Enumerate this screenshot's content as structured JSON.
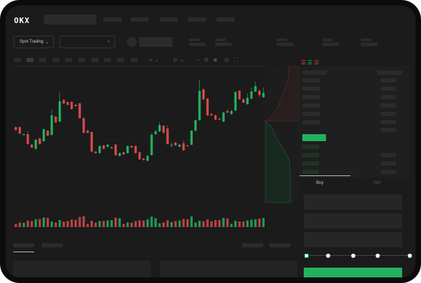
{
  "header": {
    "logo": "OKX"
  },
  "toolbar": {
    "market_select": "Spot Trading",
    "pair_select": ""
  },
  "trade": {
    "tabs": [
      "Buy",
      "Sell"
    ],
    "active_tab": "Buy",
    "slider_value": 0
  },
  "colors": {
    "up": "#22b15f",
    "down": "#d84a4a",
    "background": "#1b1b1b",
    "placeholder": "#2b2b2b"
  },
  "chart_data": {
    "type": "candlestick",
    "candles": [
      [
        118,
        114,
        119,
        113
      ],
      [
        118,
        109,
        119,
        108
      ],
      [
        107,
        108,
        109,
        106
      ],
      [
        108,
        94,
        113,
        93
      ],
      [
        93,
        89,
        94,
        88
      ],
      [
        87,
        100,
        101,
        86
      ],
      [
        102,
        94,
        103,
        93
      ],
      [
        98,
        115,
        116,
        97
      ],
      [
        113,
        106,
        114,
        105
      ],
      [
        107,
        135,
        143,
        106
      ],
      [
        133,
        125,
        134,
        124
      ],
      [
        126,
        155,
        168,
        125
      ],
      [
        157,
        152,
        158,
        151
      ],
      [
        154,
        150,
        155,
        149
      ],
      [
        154,
        144,
        155,
        143
      ],
      [
        150,
        148,
        151,
        147
      ],
      [
        152,
        131,
        153,
        130
      ],
      [
        131,
        110,
        132,
        109
      ],
      [
        113,
        110,
        114,
        109
      ],
      [
        111,
        83,
        112,
        82
      ],
      [
        83,
        81,
        84,
        80
      ],
      [
        81,
        91,
        92,
        80
      ],
      [
        92,
        87,
        93,
        86
      ],
      [
        90,
        93,
        94,
        89
      ],
      [
        89,
        89,
        91,
        87
      ],
      [
        93,
        78,
        94,
        77
      ],
      [
        77,
        81,
        82,
        76
      ],
      [
        82,
        79,
        83,
        78
      ],
      [
        81,
        91,
        92,
        80
      ],
      [
        91,
        89,
        92,
        88
      ],
      [
        91,
        81,
        92,
        80
      ],
      [
        82,
        72,
        83,
        71
      ],
      [
        73,
        71,
        74,
        70
      ],
      [
        70,
        77,
        78,
        69
      ],
      [
        78,
        107,
        110,
        77
      ],
      [
        108,
        112,
        114,
        107
      ],
      [
        112,
        121,
        125,
        111
      ],
      [
        120,
        110,
        121,
        109
      ],
      [
        116,
        94,
        121,
        93
      ],
      [
        92,
        93,
        96,
        89
      ],
      [
        96,
        92,
        97,
        91
      ],
      [
        90,
        93,
        94,
        89
      ],
      [
        95,
        85,
        99,
        84
      ],
      [
        92,
        91,
        93,
        90
      ],
      [
        93,
        113,
        114,
        92
      ],
      [
        113,
        128,
        129,
        112
      ],
      [
        128,
        170,
        185,
        127
      ],
      [
        172,
        158,
        174,
        156
      ],
      [
        159,
        135,
        160,
        134
      ],
      [
        137,
        135,
        138,
        134
      ],
      [
        135,
        129,
        136,
        128
      ],
      [
        130,
        129,
        132,
        128
      ],
      [
        126,
        139,
        140,
        125
      ],
      [
        141,
        139,
        144,
        138
      ],
      [
        137,
        141,
        143,
        136
      ],
      [
        142,
        168,
        170,
        141
      ],
      [
        170,
        158,
        171,
        157
      ],
      [
        158,
        153,
        159,
        152
      ],
      [
        151,
        160,
        166,
        150
      ],
      [
        159,
        169,
        175,
        158
      ],
      [
        169,
        177,
        183,
        168
      ],
      [
        170,
        164,
        172,
        161
      ],
      [
        161,
        167,
        175,
        160
      ]
    ]
  }
}
